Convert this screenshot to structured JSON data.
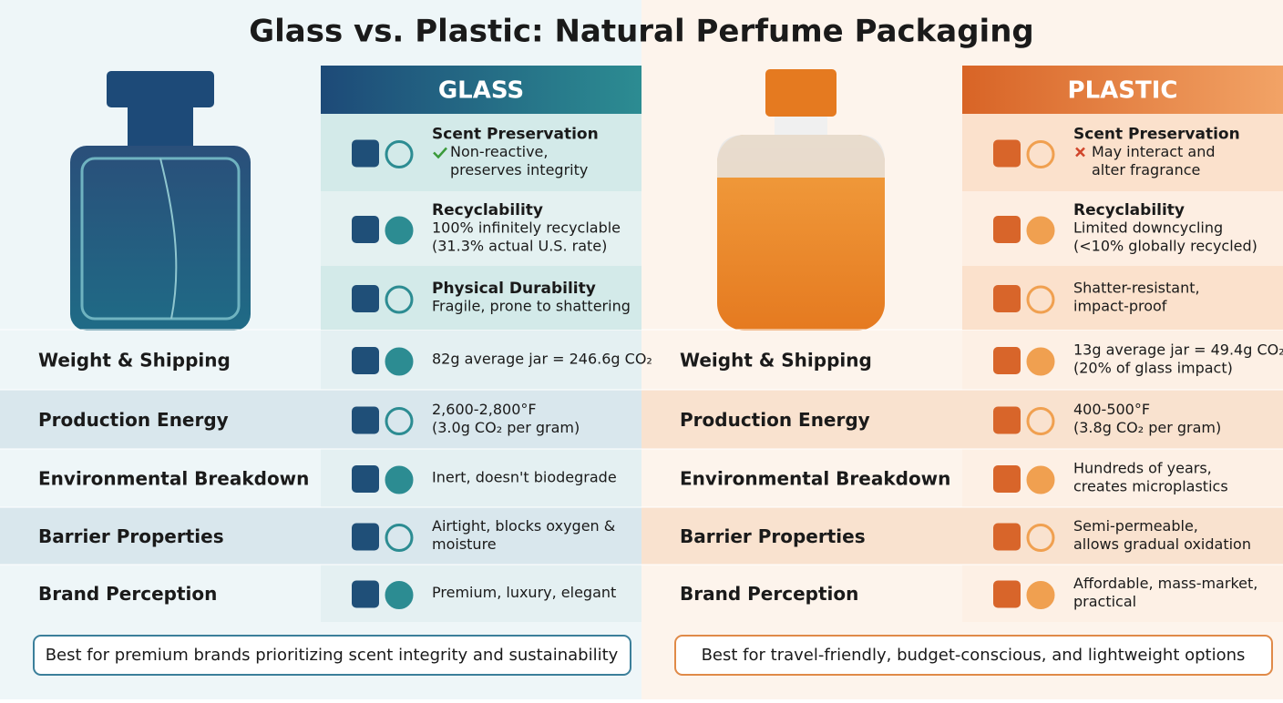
{
  "title": "Glass vs. Plastic: Natural Perfume Packaging",
  "panels": [
    {
      "header": "GLASS",
      "features": [
        {
          "title": "Scent Preservation",
          "lines": [
            "Non-reactive,",
            "preserves integrity"
          ]
        },
        {
          "title": "Recyclability",
          "lines": [
            "100% infinitely recyclable",
            "(31.3% actual U.S. rate)"
          ]
        },
        {
          "title": "Physical Durability",
          "lines": [
            "Fragile, prone to shattering"
          ]
        }
      ],
      "rows": [
        {
          "label": "Weight & Shipping",
          "lines": [
            "82g average jar = 246.6g CO₂"
          ]
        },
        {
          "label": "Production Energy",
          "lines": [
            "2,600-2,800°F",
            "(3.0g CO₂ per gram)"
          ]
        },
        {
          "label": "Environmental Breakdown",
          "lines": [
            "Inert, doesn't biodegrade"
          ]
        },
        {
          "label": "Barrier Properties",
          "lines": [
            "Airtight, blocks oxygen &",
            "moisture"
          ]
        },
        {
          "label": "Brand Perception",
          "lines": [
            "Premium, luxury, elegant"
          ]
        }
      ],
      "footer": "Best for premium brands prioritizing scent integrity and sustainability"
    },
    {
      "header": "PLASTIC",
      "features": [
        {
          "title": "Scent Preservation",
          "lines": [
            "May interact and",
            "alter fragrance"
          ]
        },
        {
          "title": "Recyclability",
          "lines": [
            "Limited downcycling",
            "(<10% globally recycled)"
          ]
        },
        {
          "lines": [
            "Shatter-resistant,",
            "impact-proof"
          ]
        }
      ],
      "rows": [
        {
          "label": "Weight & Shipping",
          "lines": [
            "13g average jar = 49.4g CO₂",
            "(20% of glass impact)"
          ]
        },
        {
          "label": "Production Energy",
          "lines": [
            "400-500°F",
            "(3.8g CO₂ per gram)"
          ]
        },
        {
          "label": "Environmental Breakdown",
          "lines": [
            "Hundreds of years,",
            "creates microplastics"
          ]
        },
        {
          "label": "Barrier Properties",
          "lines": [
            "Semi-permeable,",
            "allows gradual oxidation"
          ]
        },
        {
          "label": "Brand Perception",
          "lines": [
            "Affordable, mass-market,",
            "practical"
          ]
        }
      ],
      "footer": "Best for travel-friendly, budget-conscious, and lightweight options"
    }
  ]
}
